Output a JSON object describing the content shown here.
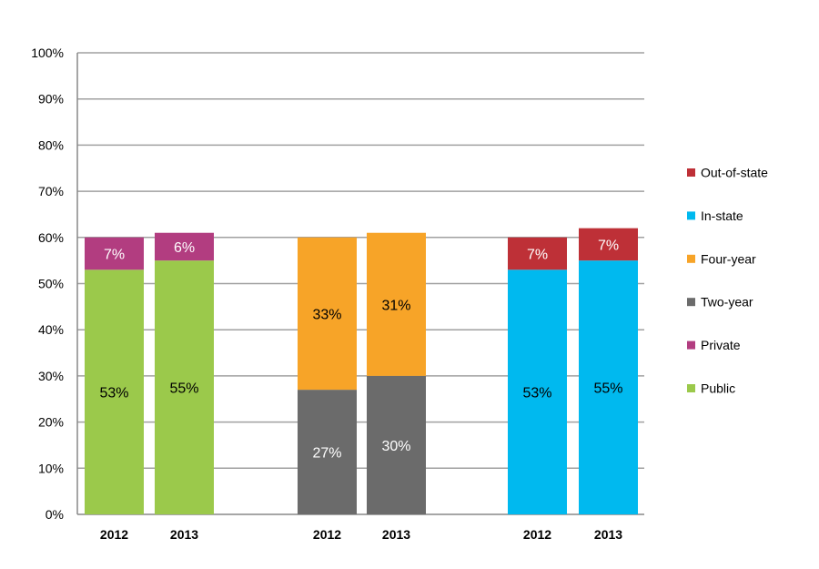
{
  "chart_data": {
    "type": "bar",
    "stacked": true,
    "ylim": [
      0,
      100
    ],
    "yticks": [
      "0%",
      "10%",
      "20%",
      "30%",
      "40%",
      "50%",
      "60%",
      "70%",
      "80%",
      "90%",
      "100%"
    ],
    "grid": true,
    "legend_placement": "right",
    "groups": [
      {
        "categories": [
          "2012",
          "2013"
        ],
        "series": [
          {
            "name": "Public",
            "color": "#9BC94B",
            "label_color": "#000000",
            "values": [
              53,
              55
            ],
            "labels": [
              "53%",
              "55%"
            ]
          },
          {
            "name": "Private",
            "color": "#B23D80",
            "label_color": "#ffffff",
            "values": [
              7,
              6
            ],
            "labels": [
              "7%",
              "6%"
            ]
          }
        ]
      },
      {
        "categories": [
          "2012",
          "2013"
        ],
        "series": [
          {
            "name": "Two-year",
            "color": "#6B6B6B",
            "label_color": "#ffffff",
            "values": [
              27,
              30
            ],
            "labels": [
              "27%",
              "30%"
            ]
          },
          {
            "name": "Four-year",
            "color": "#F7A428",
            "label_color": "#000000",
            "values": [
              33,
              31
            ],
            "labels": [
              "33%",
              "31%"
            ]
          }
        ]
      },
      {
        "categories": [
          "2012",
          "2013"
        ],
        "series": [
          {
            "name": "In-state",
            "color": "#00B9EF",
            "label_color": "#000000",
            "values": [
              53,
              55
            ],
            "labels": [
              "53%",
              "55%"
            ]
          },
          {
            "name": "Out-of-state",
            "color": "#BE3037",
            "label_color": "#ffffff",
            "values": [
              7,
              7
            ],
            "labels": [
              "7%",
              "7%"
            ]
          }
        ]
      }
    ],
    "legend": [
      {
        "name": "Out-of-state",
        "color": "#BE3037"
      },
      {
        "name": "In-state",
        "color": "#00B9EF"
      },
      {
        "name": "Four-year",
        "color": "#F7A428"
      },
      {
        "name": "Two-year",
        "color": "#6B6B6B"
      },
      {
        "name": "Private",
        "color": "#B23D80"
      },
      {
        "name": "Public",
        "color": "#9BC94B"
      }
    ]
  }
}
